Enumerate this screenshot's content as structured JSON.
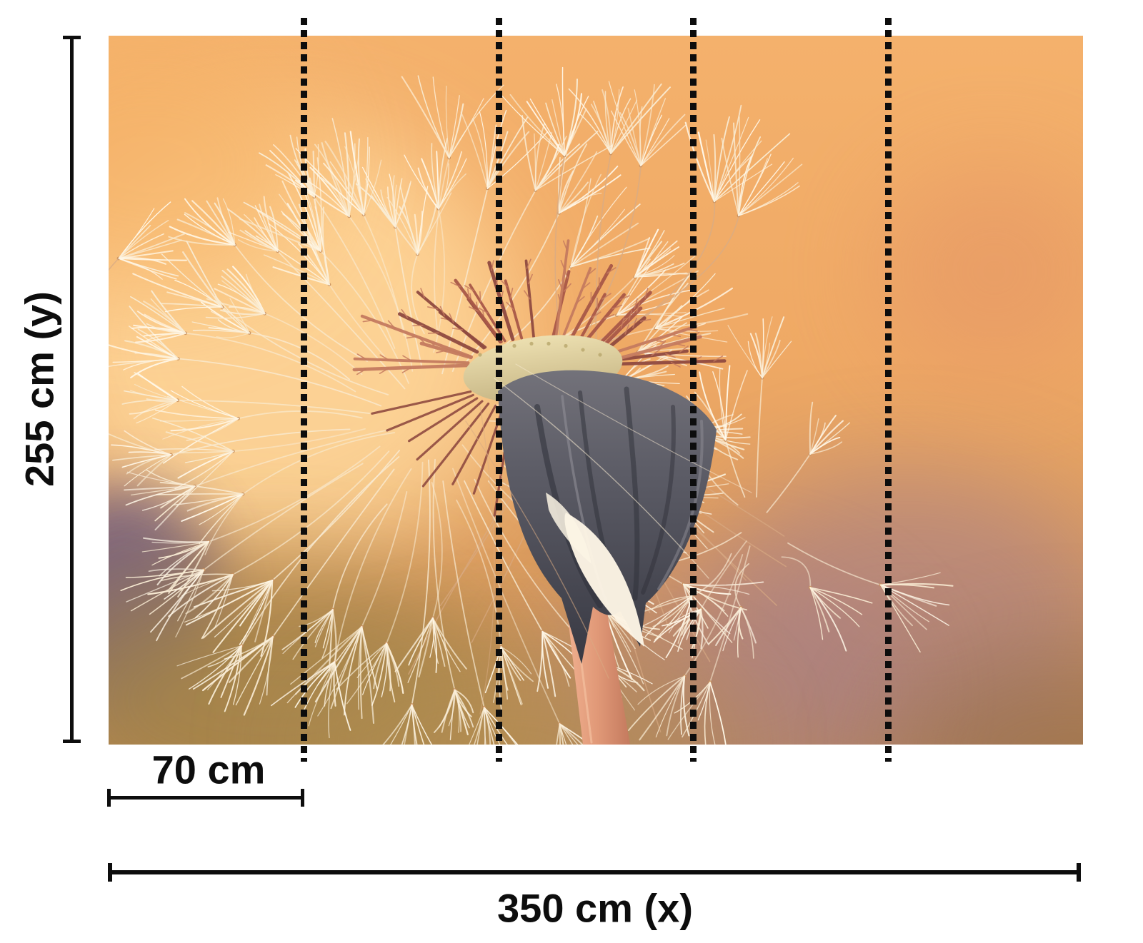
{
  "figure": {
    "type": "photo-mural dimension diagram",
    "panels": 5,
    "labels": {
      "height": "255 cm (y)",
      "panel_width": "70 cm",
      "total_width": "350 cm (x)"
    },
    "line_color": "#0d0d0d",
    "photo": {
      "subject": "dandelion seed head close-up in warm sunset light",
      "palette": {
        "bg_top": "#f4b16c",
        "bg_mid": "#efa965",
        "bg_bottom": "#bf8953",
        "glow": "#ffd99d",
        "top_left": "#f6b469",
        "right_blush": "#e18f66",
        "mauve": "#a57e89",
        "purple_edge": "#6e5b80",
        "olive": "#a2834a",
        "tan": "#b29052",
        "corner_brown": "#8a6848",
        "fluff": "#f9ecd4",
        "fluff_bright": "#fff8e9",
        "node_brown": "#c9915f",
        "beak": "#d9ab84",
        "floret_dark": "#8f4a40",
        "floret_mid": "#a85748",
        "floret_light": "#c47a5f",
        "dome_light": "#ecdfb0",
        "dome_dark": "#c5b483",
        "head_top": "#73727a",
        "head_mid": "#5c5c66",
        "head_bottom": "#383943",
        "head_streak_dark": "#2e2f38",
        "head_streak_light": "#8f8e96",
        "stem_light": "#f0b090",
        "stem_mid": "#e09877",
        "stem_dark": "#c47a5e",
        "petal_white": "#fcf4e4"
      }
    }
  }
}
